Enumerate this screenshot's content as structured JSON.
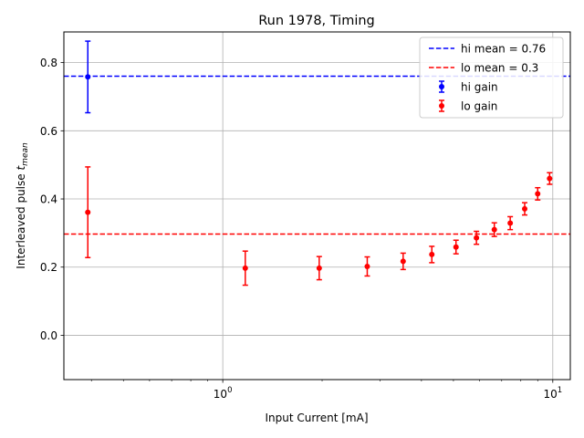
{
  "chart_data": {
    "type": "scatter",
    "title": "Run 1978, Timing",
    "xlabel": "Input Current [mA]",
    "ylabel_main": "Interleaved pulse ",
    "ylabel_var": "t",
    "ylabel_sub": "mean",
    "x_scale": "log",
    "xlim": [
      0.33,
      11.3
    ],
    "ylim": [
      -0.13,
      0.89
    ],
    "x_ticks": [
      {
        "value": 1,
        "base": "10",
        "exp": "0"
      },
      {
        "value": 10,
        "base": "10",
        "exp": "1"
      }
    ],
    "y_ticks": [
      {
        "value": 0.0,
        "label": "0.0"
      },
      {
        "value": 0.2,
        "label": "0.2"
      },
      {
        "value": 0.4,
        "label": "0.4"
      },
      {
        "value": 0.6,
        "label": "0.6"
      },
      {
        "value": 0.8,
        "label": "0.8"
      }
    ],
    "grid": true,
    "legend_position": "top-right",
    "hlines": [
      {
        "name": "hi mean = 0.76",
        "y": 0.76,
        "color": "#0000ff"
      },
      {
        "name": "lo mean = 0.3",
        "y": 0.297,
        "color": "#ff0000"
      }
    ],
    "series": [
      {
        "name": "hi gain",
        "color": "#0000ff",
        "points": [
          {
            "x": 0.39,
            "y": 0.758,
            "err": 0.105
          }
        ]
      },
      {
        "name": "lo gain",
        "color": "#ff0000",
        "points": [
          {
            "x": 0.39,
            "y": 0.361,
            "err": 0.133
          },
          {
            "x": 1.17,
            "y": 0.197,
            "err": 0.05
          },
          {
            "x": 1.96,
            "y": 0.197,
            "err": 0.034
          },
          {
            "x": 2.74,
            "y": 0.202,
            "err": 0.028
          },
          {
            "x": 3.52,
            "y": 0.217,
            "err": 0.024
          },
          {
            "x": 4.3,
            "y": 0.237,
            "err": 0.024
          },
          {
            "x": 5.09,
            "y": 0.259,
            "err": 0.02
          },
          {
            "x": 5.87,
            "y": 0.286,
            "err": 0.019
          },
          {
            "x": 6.65,
            "y": 0.31,
            "err": 0.02
          },
          {
            "x": 7.43,
            "y": 0.329,
            "err": 0.019
          },
          {
            "x": 8.22,
            "y": 0.371,
            "err": 0.018
          },
          {
            "x": 9.0,
            "y": 0.415,
            "err": 0.018
          },
          {
            "x": 9.78,
            "y": 0.46,
            "err": 0.017
          }
        ]
      }
    ]
  }
}
